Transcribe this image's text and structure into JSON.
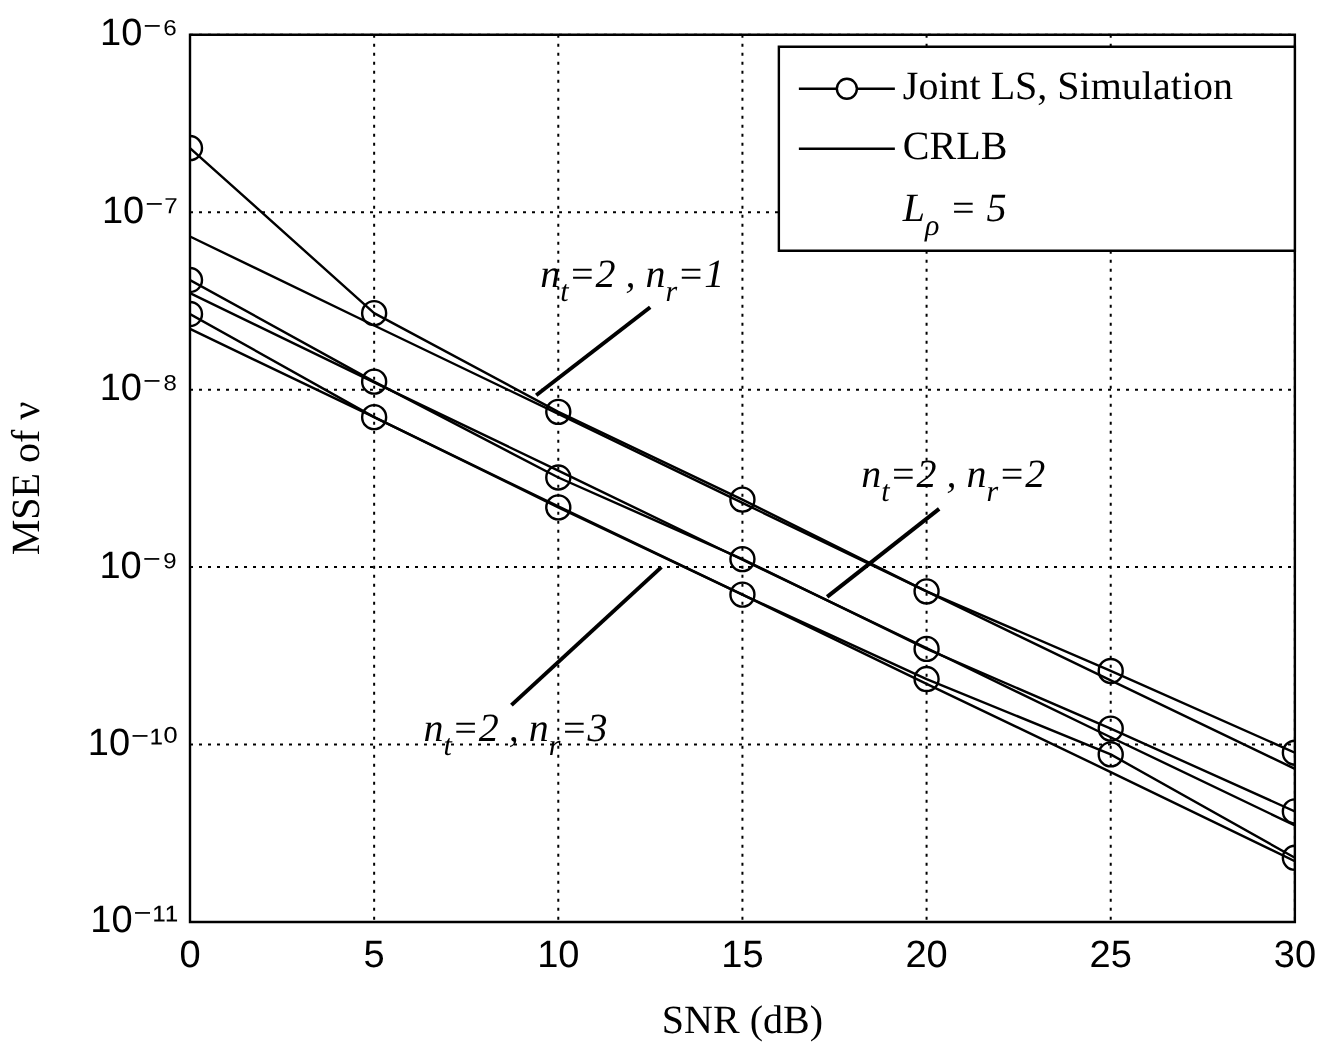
{
  "chart_data": {
    "type": "line",
    "xlabel": "SNR (dB)",
    "ylabel": "MSE of ν",
    "x": [
      0,
      5,
      10,
      15,
      20,
      25,
      30
    ],
    "xlim": [
      0,
      30
    ],
    "xticks": [
      0,
      5,
      10,
      15,
      20,
      25,
      30
    ],
    "ylim": [
      1e-11,
      1e-06
    ],
    "yticks": [
      {
        "value": 1e-11,
        "label": "10⁻¹¹"
      },
      {
        "value": 1e-10,
        "label": "10⁻¹⁰"
      },
      {
        "value": 1e-09,
        "label": "10⁻⁹"
      },
      {
        "value": 1e-08,
        "label": "10⁻⁸"
      },
      {
        "value": 1e-07,
        "label": "10⁻⁷"
      },
      {
        "value": 1e-06,
        "label": "10⁻⁶"
      }
    ],
    "log": "y",
    "grid": true,
    "legend": "top right",
    "line_style": "solid",
    "series": [
      {
        "name": "Joint LS, Simulation",
        "color": "#000000",
        "marker": "circle",
        "values": [
          2.3e-07,
          2.7e-08,
          7.5e-09,
          2.4e-09,
          7.3e-10,
          2.6e-10,
          9e-11
        ]
      },
      {
        "name": "CRLB",
        "color": "#000000",
        "marker": "none",
        "values": [
          7.3e-08,
          2.3e-08,
          7.3e-09,
          2.3e-09,
          7.3e-10,
          2.3e-10,
          7.3e-11
        ]
      },
      {
        "color": "#000000",
        "marker": "circle",
        "values": [
          4.15e-08,
          1.11e-08,
          3.2e-09,
          1.11e-09,
          3.46e-10,
          1.23e-10,
          4.2e-11
        ]
      },
      {
        "color": "#000000",
        "marker": "none",
        "values": [
          3.5e-08,
          1.1e-08,
          3.5e-09,
          1.1e-09,
          3.5e-10,
          1.1e-10,
          3.5e-11
        ]
      },
      {
        "color": "#000000",
        "marker": "circle",
        "values": [
          2.67e-08,
          7e-09,
          2.17e-09,
          7e-10,
          2.34e-10,
          8.8e-11,
          2.3e-11
        ]
      },
      {
        "color": "#000000",
        "marker": "none",
        "values": [
          2.2e-08,
          7e-09,
          2.2e-09,
          7e-10,
          2.2e-10,
          7e-11,
          2.2e-11
        ]
      }
    ],
    "annotations": [
      {
        "text": "n$_{t}$=2 , n$_{r}$=1",
        "x": 9.4,
        "y": 9.3e-09
      },
      {
        "text": "n$_{t}$=2 , n$_{r}$=2",
        "x": 17.3,
        "y": 6.8e-10
      },
      {
        "text": "n$_{t}$=2 , n$_{r}$=3",
        "x": 12.8,
        "y": 1e-09
      },
      "L$_{ρ}$ = 5"
    ]
  }
}
